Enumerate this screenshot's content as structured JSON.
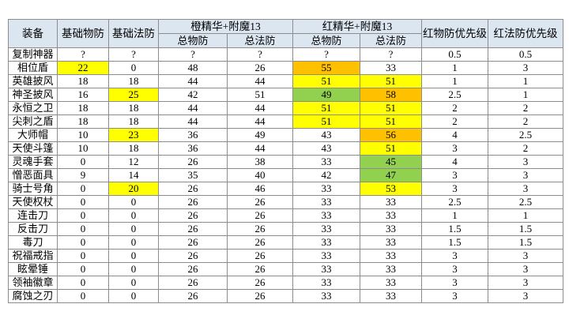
{
  "table": {
    "columns": [
      {
        "label": "装备"
      },
      {
        "label": "基础物防"
      },
      {
        "label": "基础法防"
      },
      {
        "label": "橙精华+附魔13",
        "sub": [
          "总物防",
          "总法防"
        ]
      },
      {
        "label": "红精华+附魔13",
        "sub": [
          "总物防",
          "总法防"
        ]
      },
      {
        "label": "红物防优先级"
      },
      {
        "label": "红法防优先级"
      }
    ],
    "rows": [
      [
        "复制神器",
        "?",
        "?",
        "?",
        "?",
        "?",
        "?",
        0.5,
        0.5
      ],
      [
        "相位盾",
        {
          "value": 22,
          "fill": "#ffff00"
        },
        0,
        48,
        26,
        {
          "value": 55,
          "fill": "#ffc000"
        },
        33,
        1,
        3
      ],
      [
        "英雄披风",
        18,
        18,
        44,
        44,
        {
          "value": 51,
          "fill": "#ffff00"
        },
        {
          "value": 51,
          "fill": "#ffff00"
        },
        1,
        1
      ],
      [
        "神圣披风",
        16,
        {
          "value": 25,
          "fill": "#ffff00"
        },
        42,
        51,
        {
          "value": 49,
          "fill": "#92d050"
        },
        {
          "value": 58,
          "fill": "#ffc000"
        },
        2.5,
        1
      ],
      [
        "永恒之卫",
        18,
        18,
        44,
        44,
        {
          "value": 51,
          "fill": "#ffff00"
        },
        {
          "value": 51,
          "fill": "#ffff00"
        },
        2,
        2
      ],
      [
        "尖刺之盾",
        18,
        18,
        44,
        44,
        {
          "value": 51,
          "fill": "#ffff00"
        },
        {
          "value": 51,
          "fill": "#ffff00"
        },
        2,
        2
      ],
      [
        "大师帽",
        10,
        {
          "value": 23,
          "fill": "#ffff00"
        },
        36,
        49,
        43,
        {
          "value": 56,
          "fill": "#ffc000"
        },
        4,
        2.5
      ],
      [
        "天使斗篷",
        10,
        18,
        36,
        44,
        43,
        {
          "value": 51,
          "fill": "#ffff00"
        },
        3,
        2
      ],
      [
        "灵魂手套",
        0,
        12,
        26,
        38,
        33,
        {
          "value": 45,
          "fill": "#92d050"
        },
        4,
        3
      ],
      [
        "憎恶面具",
        9,
        14,
        35,
        40,
        42,
        {
          "value": 47,
          "fill": "#92d050"
        },
        3,
        3
      ],
      [
        "骑士号角",
        0,
        {
          "value": 20,
          "fill": "#ffff00"
        },
        26,
        46,
        33,
        {
          "value": 53,
          "fill": "#ffff00"
        },
        3,
        3
      ],
      [
        "天使权杖",
        0,
        0,
        26,
        26,
        33,
        33,
        2.5,
        2.5
      ],
      [
        "连击刀",
        0,
        0,
        26,
        26,
        33,
        33,
        1,
        1
      ],
      [
        "反击刀",
        0,
        0,
        26,
        26,
        33,
        33,
        1.5,
        1.5
      ],
      [
        "毒刀",
        0,
        0,
        26,
        26,
        33,
        33,
        1.5,
        1.5
      ],
      [
        "祝福戒指",
        0,
        0,
        26,
        26,
        33,
        33,
        3,
        3
      ],
      [
        "眩晕锤",
        0,
        0,
        26,
        26,
        33,
        33,
        3,
        3
      ],
      [
        "领袖徽章",
        0,
        0,
        26,
        26,
        33,
        33,
        3,
        3
      ],
      [
        "腐蚀之刃",
        0,
        0,
        26,
        26,
        33,
        33,
        3,
        3
      ]
    ]
  }
}
